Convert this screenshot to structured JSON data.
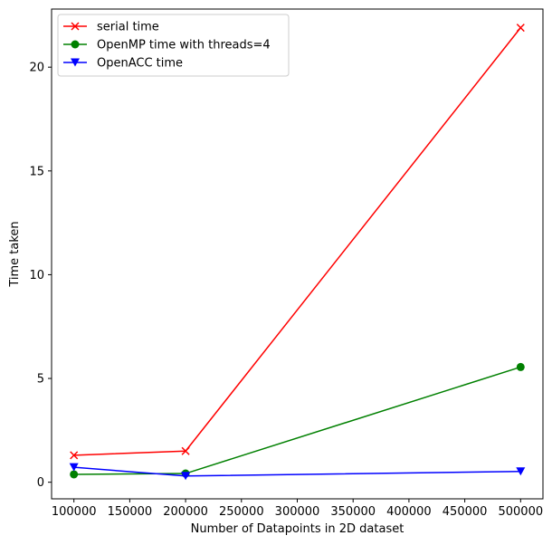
{
  "chart_data": {
    "type": "line",
    "xlabel": "Number of Datapoints in 2D dataset",
    "ylabel": "Time taken",
    "xlim": [
      80000,
      520000
    ],
    "ylim": [
      -0.8,
      22.8
    ],
    "xticks": [
      100000,
      150000,
      200000,
      250000,
      300000,
      350000,
      400000,
      450000,
      500000
    ],
    "yticks": [
      0,
      5,
      10,
      15,
      20
    ],
    "grid": false,
    "legend_position": "top-left",
    "x": [
      100000,
      200000,
      500000
    ],
    "series": [
      {
        "name": "serial time",
        "color": "#ff0000",
        "marker": "x",
        "values": [
          1.3,
          1.5,
          21.9
        ]
      },
      {
        "name": "OpenMP time with threads=4",
        "color": "#008000",
        "marker": "circle",
        "values": [
          0.38,
          0.42,
          5.55
        ]
      },
      {
        "name": "OpenACC time",
        "color": "#0000ff",
        "marker": "triangle-down",
        "values": [
          0.72,
          0.3,
          0.52
        ]
      }
    ]
  }
}
